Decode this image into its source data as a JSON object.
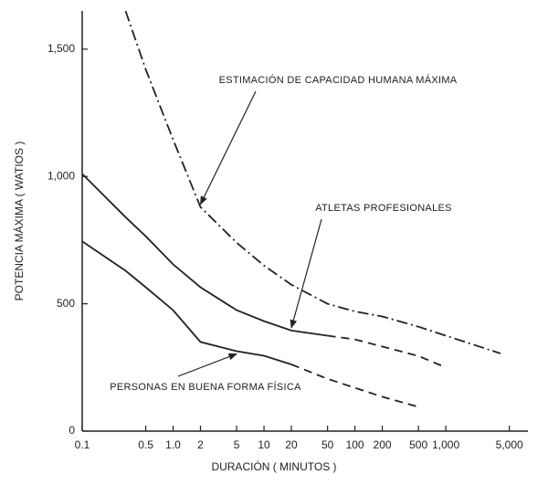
{
  "chart_data": {
    "type": "line",
    "x_label": "DURACIÓN ( MINUTOS )",
    "y_label": "POTENCIA MÁXIMA ( WATIOS )",
    "x_log": true,
    "xlim": [
      0.1,
      8000
    ],
    "xticks": [
      0.1,
      0.5,
      {
        "value": 1,
        "label": "1.0"
      },
      2,
      5,
      10,
      20,
      50,
      100,
      200,
      500,
      {
        "value": 1000,
        "label": "1,000"
      },
      {
        "value": 5000,
        "label": "5,000"
      }
    ],
    "ylim": [
      0,
      1650
    ],
    "yticks": [
      0,
      500,
      {
        "value": 1000,
        "label": "1,000"
      },
      {
        "value": 1500,
        "label": "1,500"
      }
    ],
    "x": [
      0.1,
      0.3,
      0.5,
      1,
      2,
      5,
      10,
      20,
      50,
      100,
      200,
      500,
      1000,
      2000,
      4000
    ],
    "series": [
      {
        "color": "#222222",
        "style": "dash-dot",
        "values": [
          null,
          1650,
          1420,
          1145,
          880,
          740,
          650,
          575,
          500,
          470,
          450,
          410,
          375,
          340,
          305
        ]
      },
      {
        "color": "#222222",
        "style": "solid",
        "values": [
          1010,
          840,
          765,
          655,
          565,
          475,
          432,
          395,
          375,
          null,
          null,
          null,
          null,
          null,
          null
        ]
      },
      {
        "color": "#222222",
        "style": "dashed",
        "values": [
          null,
          null,
          null,
          null,
          null,
          null,
          null,
          null,
          375,
          360,
          332,
          295,
          250,
          null,
          null
        ]
      },
      {
        "color": "#222222",
        "style": "solid",
        "values": [
          745,
          630,
          565,
          475,
          350,
          314,
          296,
          262,
          null,
          null,
          null,
          null,
          null,
          null,
          null
        ]
      },
      {
        "color": "#222222",
        "style": "dashed",
        "values": [
          null,
          null,
          null,
          null,
          null,
          null,
          null,
          262,
          205,
          170,
          135,
          95,
          null,
          null,
          null
        ]
      }
    ],
    "annotations": [
      "ESTIMACIÓN DE CAPACIDAD HUMANA MÁXIMA",
      "ATLETAS PROFESIONALES",
      "PERSONAS EN BUENA FORMA FÍSICA"
    ]
  }
}
